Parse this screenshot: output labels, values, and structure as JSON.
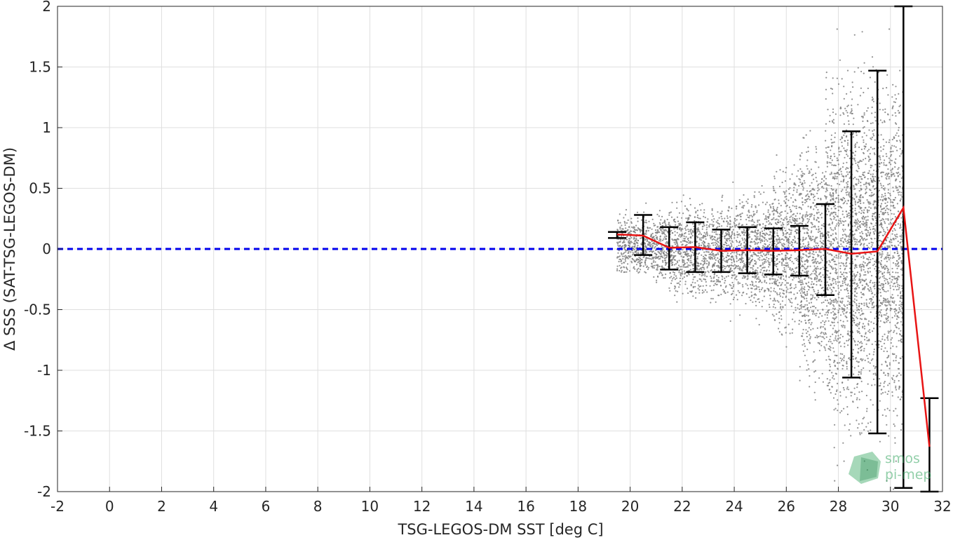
{
  "chart_data": {
    "type": "scatter",
    "xlabel": "TSG-LEGOS-DM SST [deg C]",
    "ylabel": "Δ SSS (SAT-TSG-LEGOS-DM)",
    "xlim": [
      -2,
      32
    ],
    "ylim": [
      -2,
      2
    ],
    "xticks": [
      -2,
      0,
      2,
      4,
      6,
      8,
      10,
      12,
      14,
      16,
      18,
      20,
      22,
      24,
      26,
      28,
      30,
      32
    ],
    "yticks": [
      2,
      1.5,
      1,
      0.5,
      0,
      -0.5,
      -1,
      -1.5,
      -2
    ],
    "xtick_labels": [
      "-2",
      "0",
      "2",
      "4",
      "6",
      "8",
      "10",
      "12",
      "14",
      "16",
      "18",
      "20",
      "22",
      "24",
      "26",
      "28",
      "30",
      "32"
    ],
    "ytick_labels": [
      "2",
      "1.5",
      "1",
      "0.5",
      "0",
      "-0.5",
      "-1",
      "-1.5",
      "-2"
    ],
    "grid": true,
    "reference_line": {
      "y": 0,
      "style": "dashed",
      "color": "#0000ee"
    },
    "scatter_color": "#7f7f7f",
    "mean_line_color": "#e81414",
    "errorbar_color": "#000000",
    "scatter_density_by_bin": [
      {
        "x": 20,
        "y_range": [
          -0.2,
          0.47
        ]
      },
      {
        "x": 21,
        "y_range": [
          -0.3,
          0.45
        ]
      },
      {
        "x": 22,
        "y_range": [
          -0.55,
          0.48
        ]
      },
      {
        "x": 23,
        "y_range": [
          -0.55,
          0.45
        ]
      },
      {
        "x": 24,
        "y_range": [
          -0.65,
          0.58
        ]
      },
      {
        "x": 25,
        "y_range": [
          -0.75,
          0.62
        ]
      },
      {
        "x": 26,
        "y_range": [
          -1.0,
          0.8
        ]
      },
      {
        "x": 27,
        "y_range": [
          -1.6,
          1.0
        ]
      },
      {
        "x": 28,
        "y_range": [
          -2.0,
          2.0
        ]
      },
      {
        "x": 29,
        "y_range": [
          -2.0,
          2.0
        ]
      },
      {
        "x": 30,
        "y_range": [
          -2.0,
          2.0
        ]
      }
    ],
    "binned_stats": [
      {
        "x": 19.5,
        "mean": 0.12,
        "lower": 0.09,
        "upper": 0.14
      },
      {
        "x": 20.5,
        "mean": 0.11,
        "lower": -0.05,
        "upper": 0.28
      },
      {
        "x": 21.5,
        "mean": 0.01,
        "lower": -0.17,
        "upper": 0.18
      },
      {
        "x": 22.5,
        "mean": 0.015,
        "lower": -0.19,
        "upper": 0.22
      },
      {
        "x": 23.5,
        "mean": -0.015,
        "lower": -0.19,
        "upper": 0.16
      },
      {
        "x": 24.5,
        "mean": -0.01,
        "lower": -0.2,
        "upper": 0.18
      },
      {
        "x": 25.5,
        "mean": -0.015,
        "lower": -0.21,
        "upper": 0.17
      },
      {
        "x": 26.5,
        "mean": -0.01,
        "lower": -0.22,
        "upper": 0.19
      },
      {
        "x": 27.5,
        "mean": 0.0,
        "lower": -0.38,
        "upper": 0.37
      },
      {
        "x": 28.5,
        "mean": -0.04,
        "lower": -1.06,
        "upper": 0.97
      },
      {
        "x": 29.5,
        "mean": -0.02,
        "lower": -1.52,
        "upper": 1.47
      },
      {
        "x": 30.5,
        "mean": 0.34,
        "lower": -1.97,
        "upper": 2.0
      },
      {
        "x": 31.5,
        "mean": -1.63,
        "lower": -2.0,
        "upper": -1.23
      }
    ]
  },
  "logo": {
    "line1": "smos",
    "line2": "pi-mep",
    "color": "#3aa864"
  }
}
